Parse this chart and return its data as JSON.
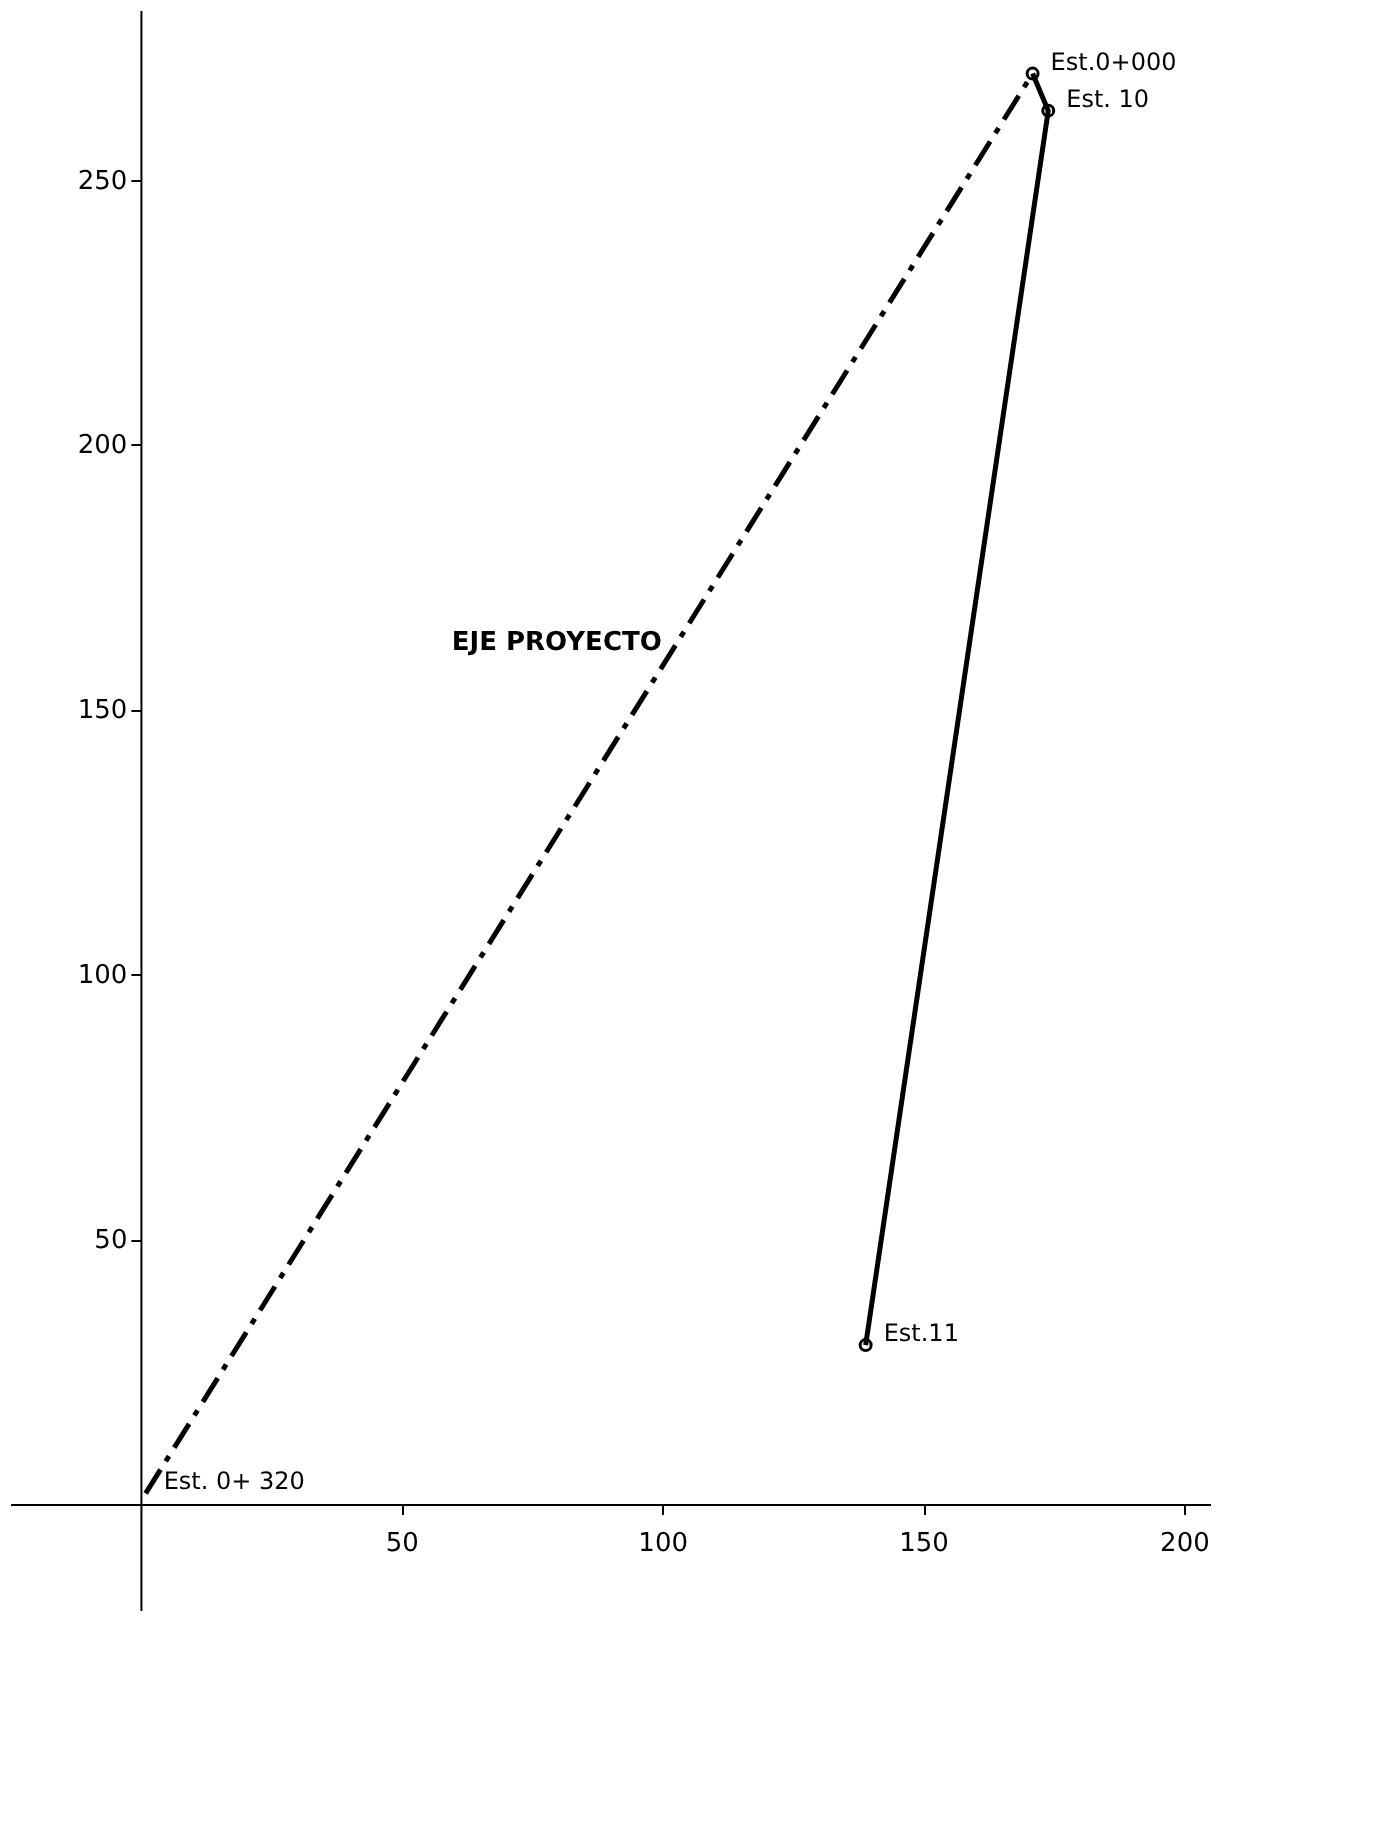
{
  "chart_data": {
    "type": "line",
    "xlim": [
      -25,
      205
    ],
    "ylim": [
      -20,
      282
    ],
    "xticks": [
      50,
      100,
      150,
      200
    ],
    "yticks": [
      50,
      100,
      150,
      200,
      250
    ],
    "grid": false,
    "series": [
      {
        "name": "EJE PROYECTO",
        "color": "#000000",
        "x": [
          1,
          171
        ],
        "values": [
          2,
          270
        ],
        "line_style": "dashed"
      },
      {
        "color": "#000000",
        "x": [
          171,
          174,
          139
        ],
        "values": [
          270,
          263,
          30
        ],
        "line_style": "solid",
        "marker": "circle"
      }
    ],
    "annotations": [
      {
        "text": "Est. 0+ 320",
        "x": 1,
        "y": 2
      },
      {
        "text": "Est.0+000",
        "x": 171,
        "y": 270
      },
      {
        "text": "Est. 10",
        "x": 174,
        "y": 263
      },
      {
        "text": "Est.11",
        "x": 139,
        "y": 30
      }
    ]
  }
}
